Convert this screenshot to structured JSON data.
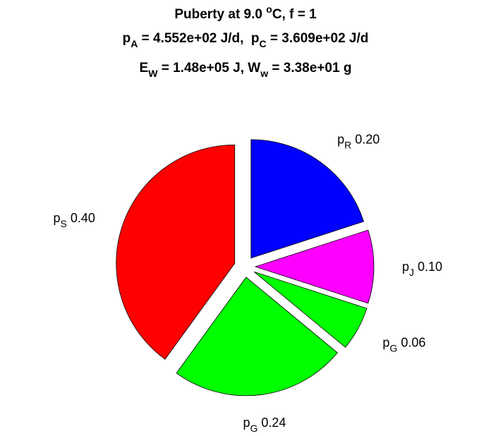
{
  "chart_data": {
    "type": "pie",
    "title": [
      [
        {
          "text": "Puberty at 9.0 "
        },
        {
          "sup": "o"
        },
        {
          "text": "C, f = 1"
        }
      ],
      [
        {
          "text": "p"
        },
        {
          "sub": "A"
        },
        {
          "text": " = 4.552e+02 J/d,  p"
        },
        {
          "sub": "C"
        },
        {
          "text": " = 3.609e+02 J/d"
        }
      ],
      [
        {
          "text": "E"
        },
        {
          "sub": "W"
        },
        {
          "text": " = 1.48e+05 J, W"
        },
        {
          "sub": "w"
        },
        {
          "text": " = 3.38e+01 g"
        }
      ]
    ],
    "labels": [
      {
        "base": "p",
        "sub": "R"
      },
      {
        "base": "p",
        "sub": "J"
      },
      {
        "base": "p",
        "sub": "G"
      },
      {
        "base": "p",
        "sub": "G"
      },
      {
        "base": "p",
        "sub": "S"
      }
    ],
    "values": [
      0.2,
      0.1,
      0.06,
      0.24,
      0.4
    ],
    "value_labels": [
      "0.20",
      "0.10",
      "0.06",
      "0.24",
      "0.40"
    ],
    "colors": [
      "#0000ff",
      "#ff00ff",
      "#00ff00",
      "#00ff00",
      "#ff0000"
    ],
    "explode": true
  }
}
